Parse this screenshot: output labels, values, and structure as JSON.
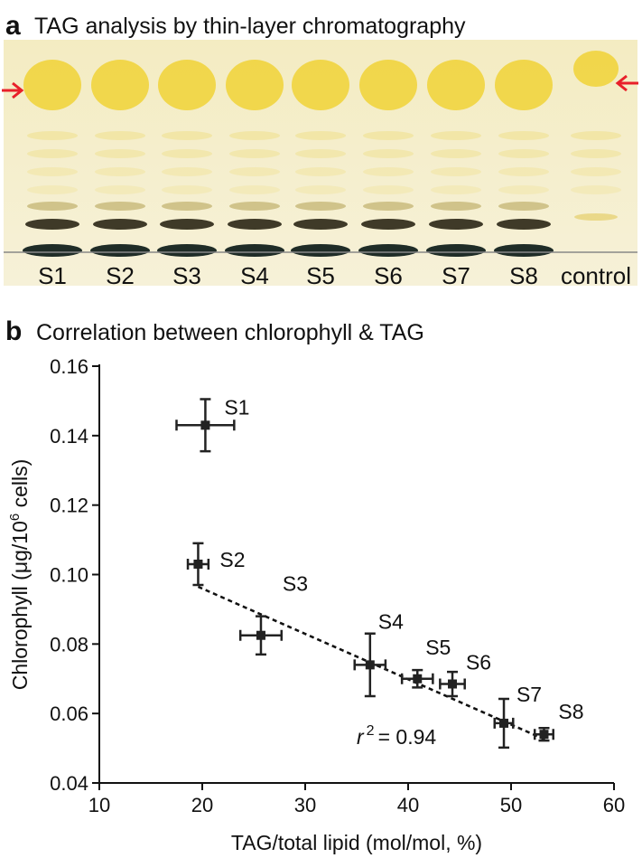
{
  "panel_a": {
    "letter": "a",
    "title": "TAG analysis by thin-layer chromatography",
    "lanes": [
      "S1",
      "S2",
      "S3",
      "S4",
      "S5",
      "S6",
      "S7",
      "S8",
      "control"
    ]
  },
  "chart_data": {
    "type": "scatter",
    "letter": "b",
    "title": "Correlation between chlorophyll & TAG",
    "x_label": "TAG/total lipid (mol/mol, %)",
    "y_label": {
      "before": "Chlorophyll (μg/10",
      "superscript": "6",
      "after": " cells)"
    },
    "labels": [
      "S1",
      "S2",
      "S3",
      "S4",
      "S5",
      "S6",
      "S7",
      "S8"
    ],
    "x": [
      20.3,
      19.6,
      25.7,
      36.3,
      40.9,
      44.3,
      49.3,
      53.2
    ],
    "y": [
      0.143,
      0.103,
      0.0825,
      0.074,
      0.07,
      0.0685,
      0.0572,
      0.054
    ],
    "xerr": [
      2.8,
      1.0,
      2.0,
      1.5,
      1.5,
      1.2,
      0.9,
      0.9
    ],
    "yerr": [
      0.0075,
      0.006,
      0.0055,
      0.009,
      0.0025,
      0.0035,
      0.007,
      0.0018
    ],
    "color": "#222222",
    "trend_line": {
      "x": [
        19.6,
        53.3
      ],
      "y": [
        0.0965,
        0.0525
      ]
    },
    "annotation": {
      "symbol": "r",
      "superscript": "2",
      "text": "= 0.94"
    },
    "xlim": [
      10,
      60
    ],
    "ylim": [
      0.04,
      0.16
    ],
    "xticks": [
      10,
      20,
      30,
      40,
      50,
      60
    ],
    "yticks": [
      0.04,
      0.06,
      0.08,
      {
        "value": 0.1,
        "label": "0.10"
      },
      0.12,
      0.14,
      0.16
    ]
  }
}
